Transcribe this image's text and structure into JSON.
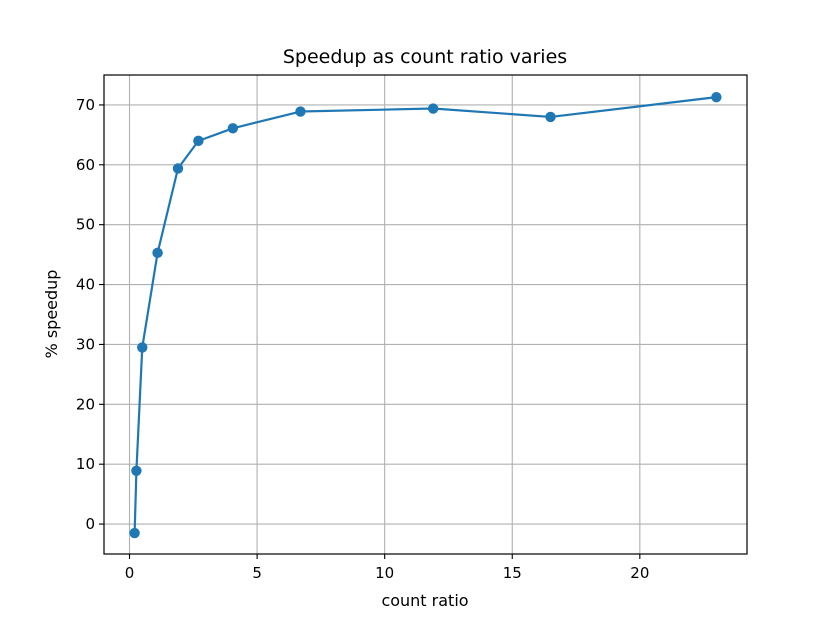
{
  "chart_data": {
    "type": "line",
    "title": "Speedup as count ratio varies",
    "xlabel": "count ratio",
    "ylabel": "% speedup",
    "xlim": [
      -1.0,
      24.2
    ],
    "ylim": [
      -5.0,
      75.0
    ],
    "xticks": [
      0,
      5,
      10,
      15,
      20
    ],
    "yticks": [
      0,
      10,
      20,
      30,
      40,
      50,
      60,
      70
    ],
    "grid": true,
    "series": [
      {
        "color": "#1f77b4",
        "marker": "circle",
        "x": [
          0.2,
          0.27,
          0.5,
          1.1,
          1.9,
          2.7,
          4.05,
          6.7,
          11.9,
          16.5,
          23.0
        ],
        "y": [
          -1.5,
          8.9,
          29.5,
          45.3,
          59.4,
          64.0,
          66.1,
          68.9,
          69.4,
          68.0,
          71.3
        ]
      }
    ]
  }
}
